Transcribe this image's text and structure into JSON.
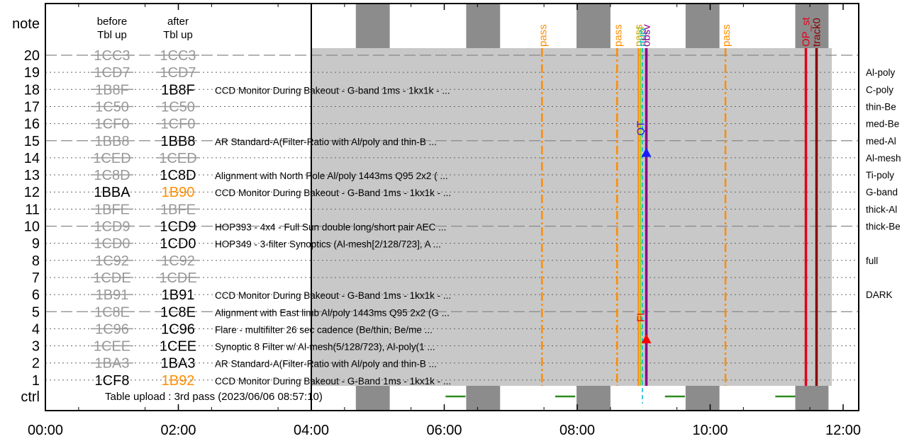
{
  "chart_data": {
    "type": "timeline",
    "x_axis": {
      "min_hours": 0,
      "max_hours": 12,
      "ticks": [
        {
          "value": 0,
          "label": "00:00"
        },
        {
          "value": 2,
          "label": "02:00"
        },
        {
          "value": 4,
          "label": "04:00"
        },
        {
          "value": 6,
          "label": "06:00"
        },
        {
          "value": 8,
          "label": "08:00"
        },
        {
          "value": 10,
          "label": "10:00"
        },
        {
          "value": 12,
          "label": "12:00"
        }
      ]
    },
    "note_label": "note",
    "ctrl_label": "ctrl",
    "header_before": [
      "before",
      "Tbl up"
    ],
    "header_after": [
      "after",
      "Tbl up"
    ],
    "table_upload_text": "Table upload : 3rd pass (2023/06/06 08:57:10)",
    "rows": [
      {
        "num": 20,
        "before": "1CC3",
        "after": "1CC3",
        "before_struck": true,
        "after_style": "struck",
        "desc": "",
        "filter": "",
        "dashed": true
      },
      {
        "num": 19,
        "before": "1CD7",
        "after": "1CD7",
        "before_struck": true,
        "after_style": "struck",
        "desc": "",
        "filter": "Al-poly",
        "dashed": false
      },
      {
        "num": 18,
        "before": "1B8F",
        "after": "1B8F",
        "before_struck": true,
        "after_style": "normal",
        "desc": "CCD Monitor During Bakeout - G-band 1ms - 1kx1k - ...",
        "filter": "C-poly",
        "dashed": false
      },
      {
        "num": 17,
        "before": "1C50",
        "after": "1C50",
        "before_struck": true,
        "after_style": "struck",
        "desc": "",
        "filter": "thin-Be",
        "dashed": false
      },
      {
        "num": 16,
        "before": "1CF0",
        "after": "1CF0",
        "before_struck": true,
        "after_style": "struck",
        "desc": "",
        "filter": "med-Be",
        "dashed": false
      },
      {
        "num": 15,
        "before": "1BB8",
        "after": "1BB8",
        "before_struck": true,
        "after_style": "normal",
        "desc": "AR Standard-A(Filter-Ratio with Al/poly and thin-B ...",
        "filter": "med-Al",
        "dashed": true
      },
      {
        "num": 14,
        "before": "1CED",
        "after": "1CED",
        "before_struck": true,
        "after_style": "struck",
        "desc": "",
        "filter": "Al-mesh",
        "dashed": false
      },
      {
        "num": 13,
        "before": "1C8D",
        "after": "1C8D",
        "before_struck": true,
        "after_style": "normal",
        "desc": "Alignment with North Pole Al/poly 1443ms Q95 2x2 ( ...",
        "filter": "Ti-poly",
        "dashed": false
      },
      {
        "num": 12,
        "before": "1BBA",
        "after": "1B90",
        "before_struck": false,
        "after_style": "orange",
        "desc": "CCD Monitor During Bakeout - G-Band 1ms - 1kx1k - ...",
        "filter": "G-band",
        "dashed": false
      },
      {
        "num": 11,
        "before": "1BFE",
        "after": "1BFE",
        "before_struck": true,
        "after_style": "struck",
        "desc": "",
        "filter": "thick-Al",
        "dashed": false
      },
      {
        "num": 10,
        "before": "1CD9",
        "after": "1CD9",
        "before_struck": true,
        "after_style": "normal",
        "desc": "HOP393 - 4x4 - Full Sun double long/short pair AEC ...",
        "filter": "thick-Be",
        "dashed": true
      },
      {
        "num": 9,
        "before": "1CD0",
        "after": "1CD0",
        "before_struck": true,
        "after_style": "normal",
        "desc": "HOP349 - 3-filter Synoptics (Al-mesh[2/128/723], A ...",
        "filter": "",
        "dashed": false
      },
      {
        "num": 8,
        "before": "1C92",
        "after": "1C92",
        "before_struck": true,
        "after_style": "struck",
        "desc": "",
        "filter": "full",
        "dashed": false
      },
      {
        "num": 7,
        "before": "1CDE",
        "after": "1CDE",
        "before_struck": true,
        "after_style": "struck",
        "desc": "",
        "filter": "",
        "dashed": false
      },
      {
        "num": 6,
        "before": "1B91",
        "after": "1B91",
        "before_struck": true,
        "after_style": "normal",
        "desc": "CCD Monitor During Bakeout - G-Band 1ms - 1kx1k - ...",
        "filter": "DARK",
        "dashed": false
      },
      {
        "num": 5,
        "before": "1C8E",
        "after": "1C8E",
        "before_struck": true,
        "after_style": "normal",
        "desc": "Alignment with East limb Al/poly 1443ms Q95 2x2 (G ...",
        "filter": "",
        "dashed": true
      },
      {
        "num": 4,
        "before": "1C96",
        "after": "1C96",
        "before_struck": true,
        "after_style": "normal",
        "desc": "Flare - multifilter 26 sec cadence (Be/thin, Be/me ...",
        "filter": "",
        "dashed": false
      },
      {
        "num": 3,
        "before": "1CEE",
        "after": "1CEE",
        "before_struck": true,
        "after_style": "normal",
        "desc": "Synoptic 8 Filter w/ Al-mesh(5/128/723), Al-poly(1 ...",
        "filter": "",
        "dashed": false
      },
      {
        "num": 2,
        "before": "1BA3",
        "after": "1BA3",
        "before_struck": true,
        "after_style": "normal",
        "desc": "AR Standard-A(Filter-Ratio with Al/poly and thin-B ...",
        "filter": "",
        "dashed": false
      },
      {
        "num": 1,
        "before": "1CF8",
        "after": "1B92",
        "before_struck": false,
        "after_style": "orange",
        "desc": "CCD Monitor During Bakeout - G-Band 1ms - 1kx1k - ...",
        "filter": "",
        "dashed": false
      }
    ],
    "gray_region": {
      "start": 4.0,
      "end": 11.83
    },
    "night_bands": [
      {
        "start": 4.67,
        "end": 5.18
      },
      {
        "start": 6.33,
        "end": 6.84
      },
      {
        "start": 7.99,
        "end": 8.5
      },
      {
        "start": 9.63,
        "end": 10.14
      },
      {
        "start": 11.28,
        "end": 11.78
      }
    ],
    "pass_markers": [
      {
        "time": 7.47,
        "label": "pass"
      },
      {
        "time": 8.6,
        "label": "pass"
      },
      {
        "time": 10.23,
        "label": "pass"
      }
    ],
    "events": [
      {
        "time": 8.92,
        "label": "pass",
        "color": "#ff8c00",
        "style": "solid"
      },
      {
        "time": 8.95,
        "label": "upld",
        "color": "#9acd32",
        "style": "solid"
      },
      {
        "time": 8.98,
        "label": "rtup",
        "color": "#00bcd4",
        "style": "dashed"
      },
      {
        "time": 9.04,
        "label": "obsv",
        "color": "#8b008b",
        "style": "thick"
      },
      {
        "time": 11.44,
        "label": "OP_st",
        "color": "#e0001b",
        "style": "thick"
      },
      {
        "time": 11.6,
        "label": "track0",
        "color": "#8b0000",
        "style": "thick"
      }
    ],
    "qt_marker": {
      "time": 9.04,
      "row": 14.3,
      "label": "QT",
      "color": "#1a1aff"
    },
    "fl_marker": {
      "time": 9.04,
      "row": 3.4,
      "label": "FL",
      "color": "#ff0000"
    },
    "ctrl_segments": [
      {
        "start": 6.02,
        "end": 6.32
      },
      {
        "start": 7.67,
        "end": 7.97
      },
      {
        "start": 9.32,
        "end": 9.62
      },
      {
        "start": 10.98,
        "end": 11.28
      }
    ],
    "colors": {
      "gray_region": "#c8c8c8",
      "night_band": "#8c8c8c",
      "struck_text": "#999999",
      "orange_text": "#ff8c00",
      "pass_line": "#ff8c00",
      "ctrl_segment": "#2e8b22"
    }
  }
}
